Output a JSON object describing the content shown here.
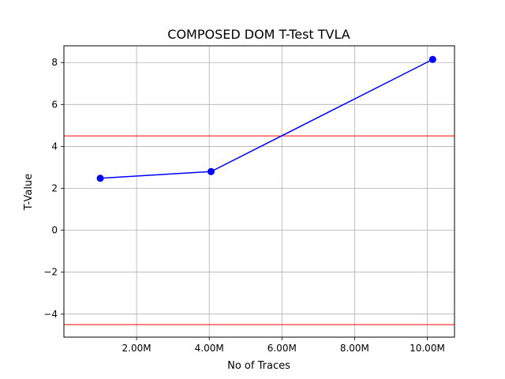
{
  "chart_data": {
    "type": "line",
    "title": "COMPOSED DOM T-Test TVLA",
    "xlabel": "No of Traces",
    "ylabel": "T-Value",
    "x": [
      1000000,
      4050000,
      10150000
    ],
    "series": [
      {
        "name": "T-Value",
        "values": [
          2.48,
          2.8,
          8.15
        ],
        "color": "#0000ff"
      }
    ],
    "thresholds": [
      {
        "value": 4.5,
        "color": "#ff0000"
      },
      {
        "value": -4.5,
        "color": "#ff0000"
      }
    ],
    "xlim": [
      0,
      10750000
    ],
    "ylim": [
      -5.1,
      8.8
    ],
    "xticks": [
      {
        "value": 2000000,
        "label": "2.00M"
      },
      {
        "value": 4000000,
        "label": "4.00M"
      },
      {
        "value": 6000000,
        "label": "6.00M"
      },
      {
        "value": 8000000,
        "label": "8.00M"
      },
      {
        "value": 10000000,
        "label": "10.00M"
      }
    ],
    "yticks": [
      {
        "value": -4,
        "label": "−4"
      },
      {
        "value": -2,
        "label": "−2"
      },
      {
        "value": 0,
        "label": "0"
      },
      {
        "value": 2,
        "label": "2"
      },
      {
        "value": 4,
        "label": "4"
      },
      {
        "value": 6,
        "label": "6"
      },
      {
        "value": 8,
        "label": "8"
      }
    ],
    "grid": true
  }
}
